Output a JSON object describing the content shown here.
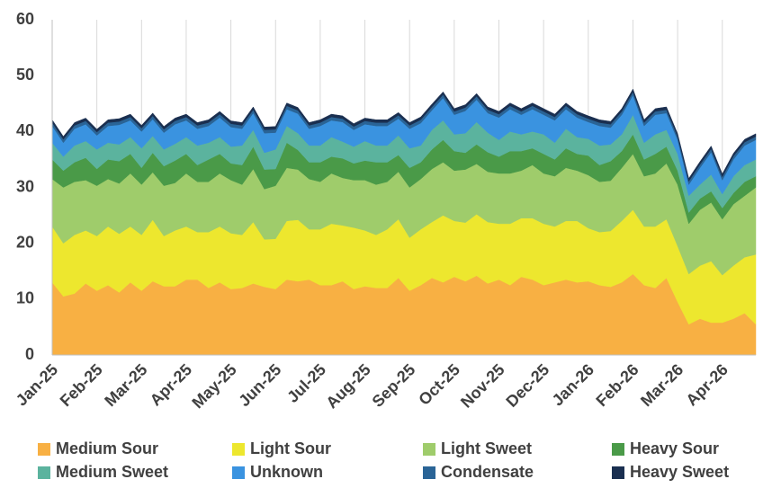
{
  "chart_data": {
    "type": "stacked_area",
    "categories": [
      "Jan-25",
      null,
      null,
      null,
      "Feb-25",
      null,
      null,
      null,
      "Mar-25",
      null,
      null,
      null,
      "Apr-25",
      null,
      null,
      null,
      "May-25",
      null,
      null,
      null,
      "Jun-25",
      null,
      null,
      null,
      "Jul-25",
      null,
      null,
      null,
      "Aug-25",
      null,
      null,
      null,
      "Sep-25",
      null,
      null,
      null,
      "Oct-25",
      null,
      null,
      null,
      "Nov-25",
      null,
      null,
      null,
      "Dec-25",
      null,
      null,
      null,
      "Jan-26",
      null,
      null,
      null,
      "Feb-26",
      null,
      null,
      null,
      "Mar-26",
      null,
      null,
      null,
      "Apr-26",
      null,
      null,
      null
    ],
    "ylim": [
      0,
      60
    ],
    "yticks": [
      0,
      10,
      20,
      30,
      40,
      50,
      60
    ],
    "grid": true,
    "series": [
      {
        "name": "Medium Sour",
        "color": "#f8b043",
        "values": [
          13,
          10.5,
          11,
          12.8,
          11.5,
          12.5,
          11.2,
          13,
          11.5,
          13.2,
          12.3,
          12.3,
          13.5,
          13.5,
          12,
          13,
          11.8,
          12,
          12.8,
          12.2,
          11.8,
          13.5,
          13.2,
          13.5,
          12.5,
          12.5,
          13.2,
          11.8,
          12.3,
          12,
          12,
          13.8,
          11.5,
          12.5,
          13.8,
          13,
          14,
          13.2,
          14.2,
          12.8,
          13.5,
          12.5,
          14,
          13.5,
          12.5,
          13,
          13.5,
          13,
          13.2,
          12.5,
          12.2,
          13,
          14.5,
          12.5,
          12,
          13.8,
          9.5,
          5.5,
          6.5,
          5.8,
          5.8,
          6.5,
          7.5,
          5.5
        ]
      },
      {
        "name": "Light Sour",
        "color": "#ede72e",
        "values": [
          10,
          9.5,
          10.5,
          9.5,
          9.8,
          10.5,
          10.5,
          10,
          10,
          11,
          9,
          10,
          9.5,
          8.5,
          10,
          10,
          10,
          9.5,
          11,
          8.5,
          9,
          10.5,
          11,
          9,
          10,
          11,
          10,
          11,
          10,
          9.5,
          10.5,
          10.5,
          9.5,
          10,
          10,
          12,
          10,
          10.5,
          11,
          11,
          10,
          11,
          10.5,
          11,
          11,
          10,
          10.5,
          11,
          9.5,
          9.5,
          10,
          11,
          11.5,
          10.5,
          11,
          10.5,
          10,
          9,
          9.5,
          11,
          8.5,
          9.5,
          10,
          12.5
        ]
      },
      {
        "name": "Light Sweet",
        "color": "#9fcc6b",
        "values": [
          8.5,
          10,
          9.5,
          9,
          9,
          8.5,
          9,
          9.5,
          9,
          8.5,
          9,
          8.5,
          9.5,
          9,
          9,
          9.5,
          9.5,
          9,
          9.5,
          9,
          9.5,
          9.5,
          9,
          9,
          8.5,
          9,
          8.5,
          8.5,
          9,
          9,
          8.5,
          8.5,
          9,
          9,
          9.5,
          9.5,
          9,
          9.5,
          9,
          9,
          9,
          9,
          8.5,
          9.5,
          9,
          9,
          9.5,
          9,
          9.5,
          9,
          9,
          9.5,
          10,
          9,
          9.5,
          10,
          11,
          9,
          10,
          10.5,
          10,
          11,
          11,
          12
        ]
      },
      {
        "name": "Heavy Sour",
        "color": "#4a9a48",
        "values": [
          3.5,
          3,
          3.5,
          4,
          3,
          3.5,
          4,
          3.5,
          3,
          3.5,
          3.5,
          4,
          3.5,
          3,
          4,
          3.5,
          3,
          3.5,
          4,
          3.5,
          3,
          4.5,
          3.5,
          3,
          3.5,
          3,
          3.5,
          3,
          3.5,
          4,
          3.5,
          3,
          3.5,
          3,
          3.5,
          4,
          3.5,
          3,
          3.5,
          3.5,
          3,
          4,
          3.5,
          3,
          3.5,
          3,
          3.5,
          3,
          3.5,
          3,
          3.5,
          3,
          3.5,
          3,
          3.5,
          3,
          2.5,
          2,
          2,
          2,
          2,
          2,
          2.5,
          2
        ]
      },
      {
        "name": "Medium Sweet",
        "color": "#5bb39e",
        "values": [
          3,
          2.5,
          3,
          3,
          3.5,
          3,
          3,
          3,
          3.5,
          3,
          3,
          3,
          3,
          3.5,
          3,
          3,
          3,
          3.5,
          3,
          3,
          3.5,
          3,
          3,
          3,
          3,
          3.5,
          3,
          3,
          3.5,
          3,
          3,
          3.5,
          3.5,
          3,
          3.5,
          3.5,
          3,
          3.5,
          4,
          3.5,
          3,
          3.5,
          3,
          3,
          3.5,
          3,
          3.5,
          3,
          3,
          3.5,
          3,
          3,
          3.5,
          3,
          3.5,
          3,
          3,
          3,
          2.5,
          3,
          2.5,
          3,
          3,
          3
        ]
      },
      {
        "name": "Unknown",
        "color": "#3a93e0",
        "values": [
          3,
          2.5,
          3,
          3,
          2.5,
          3,
          3.5,
          3,
          3,
          3,
          3,
          3.5,
          3,
          3,
          3,
          3.5,
          3.5,
          3,
          3,
          3.5,
          3,
          3,
          3.5,
          3,
          3.5,
          3,
          3.5,
          3,
          3,
          3.5,
          3.5,
          3,
          3.5,
          4,
          3.5,
          4,
          3.5,
          4,
          4,
          3.5,
          4,
          4,
          3.5,
          4,
          3.5,
          4,
          3.5,
          3.5,
          3,
          3.5,
          3,
          3.5,
          3.5,
          3,
          3.5,
          3,
          2.5,
          2,
          3,
          4,
          2.5,
          3,
          3.5,
          3.5
        ]
      },
      {
        "name": "Condensate",
        "color": "#2a6496",
        "values": [
          0.6,
          0.6,
          0.6,
          0.6,
          0.6,
          0.6,
          0.6,
          0.6,
          0.6,
          0.6,
          0.6,
          0.6,
          0.6,
          0.6,
          0.6,
          0.6,
          0.6,
          0.6,
          0.6,
          0.6,
          0.6,
          0.6,
          0.6,
          0.6,
          0.6,
          0.6,
          0.6,
          0.6,
          0.6,
          0.6,
          0.6,
          0.6,
          0.6,
          0.6,
          0.6,
          0.6,
          0.6,
          0.6,
          0.6,
          0.6,
          0.6,
          0.6,
          0.6,
          0.6,
          0.6,
          0.6,
          0.6,
          0.6,
          0.6,
          0.6,
          0.6,
          0.6,
          0.6,
          0.6,
          0.6,
          0.6,
          0.6,
          0.6,
          0.6,
          0.6,
          0.6,
          0.6,
          0.6,
          0.6
        ]
      },
      {
        "name": "Heavy Sweet",
        "color": "#1a2f50",
        "values": [
          0.5,
          0.5,
          0.5,
          0.5,
          0.5,
          0.5,
          0.5,
          0.5,
          0.5,
          0.5,
          0.5,
          0.5,
          0.5,
          0.5,
          0.5,
          0.5,
          0.5,
          0.5,
          0.5,
          0.5,
          0.5,
          0.5,
          0.5,
          0.5,
          0.5,
          0.5,
          0.5,
          0.5,
          0.5,
          0.5,
          0.5,
          0.5,
          0.5,
          0.5,
          0.5,
          0.5,
          0.5,
          0.5,
          0.5,
          0.5,
          0.5,
          0.5,
          0.5,
          0.5,
          0.5,
          0.5,
          0.5,
          0.5,
          0.5,
          0.5,
          0.5,
          0.5,
          0.5,
          0.5,
          0.5,
          0.5,
          0.5,
          0.5,
          0.5,
          0.5,
          0.5,
          0.5,
          0.5,
          0.5
        ]
      }
    ]
  }
}
